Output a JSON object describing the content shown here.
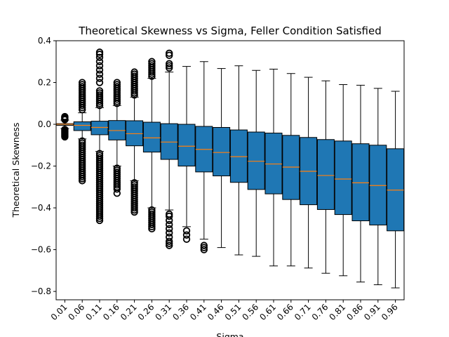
{
  "chart_data": {
    "type": "boxplot",
    "title": "Theoretical Skewness vs Sigma, Feller Condition Satisfied",
    "xlabel": "Sigma",
    "ylabel": "Theoretical Skewness",
    "ylim": [
      -0.84,
      0.4
    ],
    "yticks": [
      -0.8,
      -0.6,
      -0.4,
      -0.2,
      0.0,
      0.2,
      0.4
    ],
    "ytick_labels": [
      "−0.8",
      "−0.6",
      "−0.4",
      "−0.2",
      "0.0",
      "0.2",
      "0.4"
    ],
    "grid": false,
    "colors": {
      "box": "#1f77b4",
      "median": "#ff7f0e",
      "whisker": "#000000"
    },
    "categories": [
      "0.01",
      "0.06",
      "0.11",
      "0.16",
      "0.21",
      "0.26",
      "0.31",
      "0.36",
      "0.41",
      "0.46",
      "0.51",
      "0.56",
      "0.61",
      "0.66",
      "0.71",
      "0.76",
      "0.81",
      "0.86",
      "0.91",
      "0.96"
    ],
    "boxes": [
      {
        "whislo": -0.02,
        "q1": -0.005,
        "med": 0.0,
        "q3": 0.003,
        "whishi": 0.02,
        "fliers": [
          -0.06,
          -0.055,
          -0.05,
          -0.045,
          -0.04,
          -0.035,
          -0.03,
          -0.025,
          0.022,
          0.025,
          0.028,
          0.031,
          0.034,
          0.037
        ]
      },
      {
        "whislo": -0.07,
        "q1": -0.03,
        "med": -0.005,
        "q3": 0.012,
        "whishi": 0.055,
        "fliers": [
          -0.27,
          -0.26,
          -0.25,
          -0.24,
          -0.23,
          -0.22,
          -0.21,
          -0.2,
          -0.19,
          -0.18,
          -0.17,
          -0.16,
          -0.15,
          -0.14,
          -0.13,
          -0.12,
          -0.11,
          -0.1,
          -0.09,
          -0.08,
          0.07,
          0.08,
          0.09,
          0.1,
          0.11,
          0.12,
          0.13,
          0.14,
          0.15,
          0.16,
          0.17,
          0.18,
          0.19,
          0.2
        ]
      },
      {
        "whislo": -0.13,
        "q1": -0.05,
        "med": -0.015,
        "q3": 0.015,
        "whishi": 0.08,
        "fliers": [
          -0.46,
          -0.45,
          -0.44,
          -0.43,
          -0.42,
          -0.41,
          -0.4,
          -0.39,
          -0.38,
          -0.37,
          -0.36,
          -0.35,
          -0.34,
          -0.33,
          -0.32,
          -0.31,
          -0.3,
          -0.29,
          -0.28,
          -0.27,
          -0.26,
          -0.25,
          -0.24,
          -0.23,
          -0.22,
          -0.21,
          -0.2,
          -0.19,
          -0.18,
          -0.17,
          -0.16,
          -0.15,
          -0.14,
          0.09,
          0.1,
          0.11,
          0.12,
          0.13,
          0.14,
          0.15,
          0.16,
          0.2,
          0.22,
          0.24,
          0.26,
          0.28,
          0.3,
          0.32,
          0.335,
          0.345
        ]
      },
      {
        "whislo": -0.2,
        "q1": -0.075,
        "med": -0.03,
        "q3": 0.018,
        "whishi": 0.09,
        "fliers": [
          -0.33,
          -0.31,
          -0.3,
          -0.29,
          -0.28,
          -0.27,
          -0.26,
          -0.25,
          -0.24,
          -0.23,
          -0.22,
          -0.21,
          0.1,
          0.11,
          0.12,
          0.13,
          0.14,
          0.15,
          0.16,
          0.17,
          0.18,
          0.19,
          0.2
        ]
      },
      {
        "whislo": -0.27,
        "q1": -0.103,
        "med": -0.045,
        "q3": 0.017,
        "whishi": 0.13,
        "fliers": [
          -0.42,
          -0.41,
          -0.4,
          -0.39,
          -0.38,
          -0.37,
          -0.36,
          -0.35,
          -0.34,
          -0.33,
          -0.32,
          -0.31,
          -0.3,
          -0.29,
          -0.28,
          0.14,
          0.15,
          0.16,
          0.17,
          0.18,
          0.19,
          0.2,
          0.21,
          0.22,
          0.23,
          0.24,
          0.25
        ]
      },
      {
        "whislo": -0.4,
        "q1": -0.133,
        "med": -0.065,
        "q3": 0.01,
        "whishi": 0.22,
        "fliers": [
          -0.5,
          -0.49,
          -0.48,
          -0.47,
          -0.46,
          -0.45,
          -0.44,
          -0.43,
          -0.42,
          -0.41,
          0.23,
          0.24,
          0.25,
          0.26,
          0.27,
          0.28,
          0.29,
          0.3
        ]
      },
      {
        "whislo": -0.41,
        "q1": -0.168,
        "med": -0.085,
        "q3": 0.003,
        "whishi": 0.25,
        "fliers": [
          -0.58,
          -0.57,
          -0.56,
          -0.54,
          -0.52,
          -0.5,
          -0.48,
          -0.46,
          -0.44,
          -0.43,
          0.27,
          0.28,
          0.29,
          0.33,
          0.34
        ]
      },
      {
        "whislo": -0.49,
        "q1": -0.2,
        "med": -0.105,
        "q3": 0.0,
        "whishi": 0.277,
        "fliers": [
          -0.55,
          -0.53,
          -0.51
        ]
      },
      {
        "whislo": -0.55,
        "q1": -0.228,
        "med": -0.12,
        "q3": -0.01,
        "whishi": 0.3,
        "fliers": [
          -0.6,
          -0.59,
          -0.58
        ]
      },
      {
        "whislo": -0.59,
        "q1": -0.247,
        "med": -0.135,
        "q3": -0.015,
        "whishi": 0.267,
        "fliers": []
      },
      {
        "whislo": -0.625,
        "q1": -0.278,
        "med": -0.155,
        "q3": -0.027,
        "whishi": 0.28,
        "fliers": []
      },
      {
        "whislo": -0.632,
        "q1": -0.312,
        "med": -0.177,
        "q3": -0.037,
        "whishi": 0.258,
        "fliers": []
      },
      {
        "whislo": -0.678,
        "q1": -0.333,
        "med": -0.19,
        "q3": -0.042,
        "whishi": 0.264,
        "fliers": []
      },
      {
        "whislo": -0.678,
        "q1": -0.36,
        "med": -0.205,
        "q3": -0.053,
        "whishi": 0.243,
        "fliers": []
      },
      {
        "whislo": -0.688,
        "q1": -0.385,
        "med": -0.225,
        "q3": -0.063,
        "whishi": 0.225,
        "fliers": []
      },
      {
        "whislo": -0.713,
        "q1": -0.408,
        "med": -0.245,
        "q3": -0.073,
        "whishi": 0.208,
        "fliers": []
      },
      {
        "whislo": -0.725,
        "q1": -0.432,
        "med": -0.262,
        "q3": -0.08,
        "whishi": 0.19,
        "fliers": []
      },
      {
        "whislo": -0.755,
        "q1": -0.462,
        "med": -0.28,
        "q3": -0.093,
        "whishi": 0.187,
        "fliers": []
      },
      {
        "whislo": -0.768,
        "q1": -0.482,
        "med": -0.293,
        "q3": -0.1,
        "whishi": 0.172,
        "fliers": []
      },
      {
        "whislo": -0.783,
        "q1": -0.51,
        "med": -0.315,
        "q3": -0.117,
        "whishi": 0.158,
        "fliers": []
      }
    ]
  }
}
